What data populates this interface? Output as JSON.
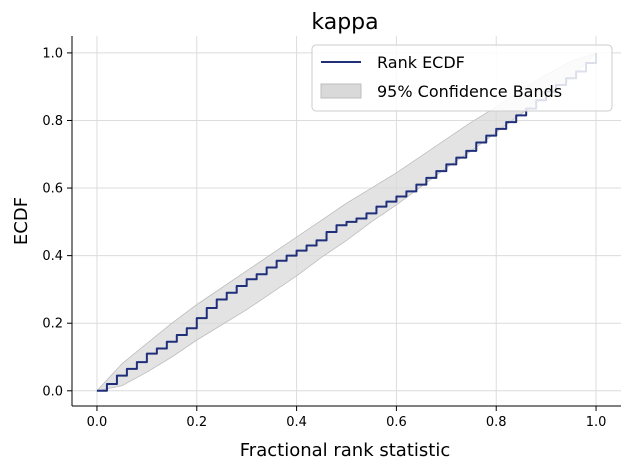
{
  "chart_data": {
    "type": "line",
    "title": "kappa",
    "xlabel": "Fractional rank statistic",
    "ylabel": "ECDF",
    "xlim": [
      -0.05,
      1.05
    ],
    "ylim": [
      -0.045,
      1.05
    ],
    "xticks": [
      0.0,
      0.2,
      0.4,
      0.6,
      0.8,
      1.0
    ],
    "xtick_labels": [
      "0.0",
      "0.2",
      "0.4",
      "0.6",
      "0.8",
      "1.0"
    ],
    "yticks": [
      0.0,
      0.2,
      0.4,
      0.6,
      0.8,
      1.0
    ],
    "ytick_labels": [
      "0.0",
      "0.2",
      "0.4",
      "0.6",
      "0.8",
      "1.0"
    ],
    "grid": true,
    "legend_position": "top-right",
    "colors": {
      "line": "#1f2f7a",
      "band_fill": "#d9d9d9",
      "band_edge": "#bdbdbd",
      "grid": "#dcdcdc"
    },
    "series": [
      {
        "name": "Rank ECDF",
        "kind": "line",
        "x": [
          0.0,
          0.02,
          0.04,
          0.06,
          0.08,
          0.1,
          0.12,
          0.14,
          0.16,
          0.18,
          0.2,
          0.22,
          0.24,
          0.26,
          0.28,
          0.3,
          0.32,
          0.34,
          0.36,
          0.38,
          0.4,
          0.42,
          0.44,
          0.46,
          0.48,
          0.5,
          0.52,
          0.54,
          0.56,
          0.58,
          0.6,
          0.62,
          0.64,
          0.66,
          0.68,
          0.7,
          0.72,
          0.74,
          0.76,
          0.78,
          0.8,
          0.82,
          0.84,
          0.86,
          0.88,
          0.9,
          0.92,
          0.94,
          0.96,
          0.98,
          1.0
        ],
        "y": [
          0.0,
          0.02,
          0.045,
          0.065,
          0.085,
          0.11,
          0.125,
          0.145,
          0.165,
          0.185,
          0.215,
          0.245,
          0.27,
          0.29,
          0.31,
          0.33,
          0.345,
          0.365,
          0.385,
          0.4,
          0.415,
          0.43,
          0.445,
          0.47,
          0.49,
          0.5,
          0.51,
          0.525,
          0.545,
          0.56,
          0.575,
          0.59,
          0.61,
          0.63,
          0.65,
          0.67,
          0.69,
          0.71,
          0.735,
          0.755,
          0.775,
          0.795,
          0.815,
          0.835,
          0.86,
          0.885,
          0.905,
          0.925,
          0.945,
          0.97,
          1.0
        ]
      },
      {
        "name": "95% Confidence Bands",
        "kind": "band",
        "x": [
          0.0,
          0.05,
          0.1,
          0.15,
          0.2,
          0.25,
          0.3,
          0.35,
          0.4,
          0.45,
          0.5,
          0.55,
          0.6,
          0.65,
          0.7,
          0.75,
          0.8,
          0.85,
          0.9,
          0.95,
          1.0
        ],
        "lower": [
          0.0,
          0.015,
          0.055,
          0.1,
          0.15,
          0.195,
          0.24,
          0.29,
          0.34,
          0.395,
          0.445,
          0.5,
          0.55,
          0.605,
          0.66,
          0.71,
          0.765,
          0.82,
          0.87,
          0.925,
          1.0
        ],
        "upper": [
          0.0,
          0.08,
          0.14,
          0.2,
          0.255,
          0.305,
          0.355,
          0.405,
          0.455,
          0.505,
          0.555,
          0.6,
          0.645,
          0.695,
          0.745,
          0.795,
          0.84,
          0.89,
          0.935,
          0.975,
          1.0
        ]
      }
    ]
  }
}
